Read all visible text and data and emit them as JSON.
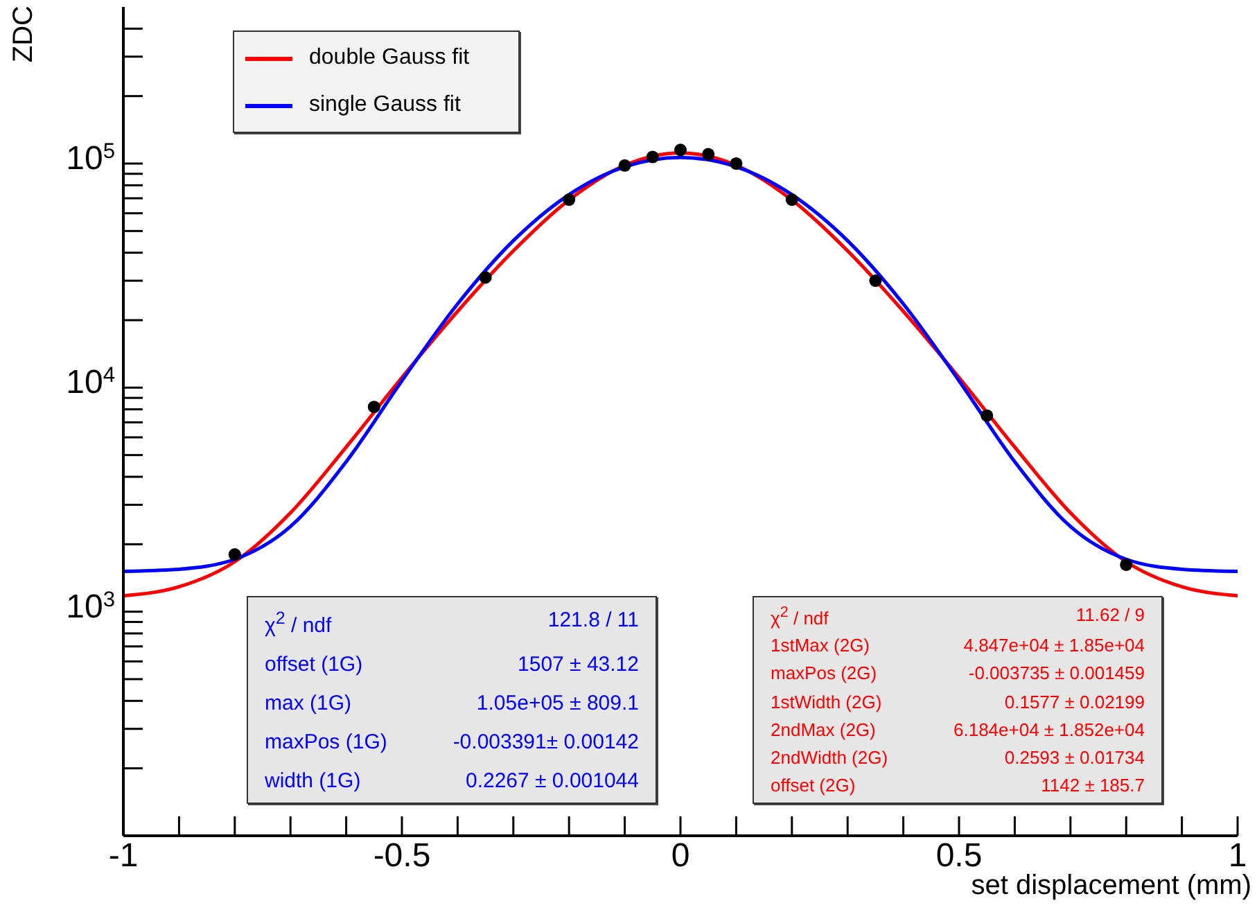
{
  "chart_data": {
    "type": "line",
    "xlabel": "set displacement (mm)",
    "ylabel": "ZDC",
    "log": "y",
    "legend": "top left",
    "grid": false,
    "xlim": [
      -1,
      1
    ],
    "xticks": [
      -1,
      {
        "value": -0.9,
        "label": null
      },
      {
        "value": -0.8,
        "label": null
      },
      {
        "value": -0.7,
        "label": null
      },
      {
        "value": -0.6,
        "label": null
      },
      -0.5,
      {
        "value": -0.4,
        "label": null
      },
      {
        "value": -0.3,
        "label": null
      },
      {
        "value": -0.2,
        "label": null
      },
      {
        "value": -0.1,
        "label": null
      },
      0,
      {
        "value": 0.1,
        "label": null
      },
      {
        "value": 0.2,
        "label": null
      },
      {
        "value": 0.3,
        "label": null
      },
      {
        "value": 0.4,
        "label": null
      },
      0.5,
      {
        "value": 0.6,
        "label": null
      },
      {
        "value": 0.7,
        "label": null
      },
      {
        "value": 0.8,
        "label": null
      },
      {
        "value": 0.9,
        "label": null
      },
      1
    ],
    "ylim": [
      100,
      500000
    ],
    "yticks": [
      {
        "value": 200,
        "label": null
      },
      {
        "value": 300,
        "label": null
      },
      {
        "value": 400,
        "label": null
      },
      {
        "value": 500,
        "label": null
      },
      {
        "value": 600,
        "label": null
      },
      {
        "value": 700,
        "label": null
      },
      {
        "value": 800,
        "label": null
      },
      {
        "value": 900,
        "label": null
      },
      {
        "value": 1000,
        "label": "10$^{3}$"
      },
      {
        "value": 2000,
        "label": null
      },
      {
        "value": 3000,
        "label": null
      },
      {
        "value": 4000,
        "label": null
      },
      {
        "value": 5000,
        "label": null
      },
      {
        "value": 6000,
        "label": null
      },
      {
        "value": 7000,
        "label": null
      },
      {
        "value": 8000,
        "label": null
      },
      {
        "value": 9000,
        "label": null
      },
      {
        "value": 10000,
        "label": "10$^{4}$"
      },
      {
        "value": 20000,
        "label": null
      },
      {
        "value": 30000,
        "label": null
      },
      {
        "value": 40000,
        "label": null
      },
      {
        "value": 50000,
        "label": null
      },
      {
        "value": 60000,
        "label": null
      },
      {
        "value": 70000,
        "label": null
      },
      {
        "value": 80000,
        "label": null
      },
      {
        "value": 90000,
        "label": null
      },
      {
        "value": 100000,
        "label": "10$^{5}$"
      },
      {
        "value": 200000,
        "label": null
      },
      {
        "value": 300000,
        "label": null
      },
      {
        "value": 400000,
        "label": null
      }
    ],
    "series": [
      {
        "name": "double Gauss fit",
        "color": "#ff0000",
        "marker": "none",
        "x": [
          -1,
          -0.9,
          -0.8,
          -0.7,
          -0.6,
          -0.5,
          -0.4,
          -0.3,
          -0.2,
          -0.1,
          0,
          0.1,
          0.2,
          0.3,
          0.4,
          0.5,
          0.6,
          0.7,
          0.8,
          0.9,
          1
        ],
        "values": [
          1178,
          1292,
          1672,
          2762,
          5429,
          11095,
          21903,
          40749,
          68760,
          98191,
          111452,
          98191,
          68760,
          40749,
          21903,
          11095,
          5429,
          2762,
          1672,
          1292,
          1178
        ]
      },
      {
        "name": "single Gauss fit",
        "color": "#0000ff",
        "marker": "none",
        "x": [
          -1,
          -0.9,
          -0.8,
          -0.7,
          -0.6,
          -0.5,
          -0.4,
          -0.3,
          -0.2,
          -0.1,
          0,
          0.1,
          0.2,
          0.3,
          0.4,
          0.5,
          0.6,
          0.7,
          0.8,
          0.9,
          1
        ],
        "values": [
          1513,
          1547,
          1714,
          2400,
          4670,
          10727,
          23641,
          45250,
          72655,
          96774,
          106507,
          96774,
          72655,
          45250,
          23641,
          10727,
          4670,
          2400,
          1714,
          1547,
          1513
        ]
      },
      {
        "type": "scatter",
        "color": "#000000",
        "marker": "circle",
        "x": [
          -0.8,
          -0.55,
          -0.35,
          -0.2,
          -0.1,
          -0.05,
          0,
          0.05,
          0.1,
          0.2,
          0.35,
          0.55,
          0.8
        ],
        "values": [
          1800,
          8200,
          31000,
          69000,
          98000,
          107000,
          115000,
          110000,
          100000,
          69000,
          30000,
          7500,
          1620
        ]
      }
    ],
    "annotations": [
      "χ$^{2}$ / ndf",
      "121.8 / 11",
      "offset (1G)",
      "1507 ± 43.12",
      "max (1G)",
      "1.05e+05 ± 809.1",
      "maxPos (1G)",
      "-0.003391± 0.00142",
      "width (1G)",
      "0.2267 ± 0.001044",
      "χ$^{2}$ / ndf",
      "11.62 / 9",
      "1stMax (2G)",
      "4.847e+04 ± 1.85e+04",
      "maxPos (2G)",
      "-0.003735 ± 0.001459",
      "1stWidth (2G)",
      "0.1577 ± 0.02199",
      "2ndMax (2G)",
      "6.184e+04 ± 1.852e+04",
      "2ndWidth (2G)",
      "0.2593 ± 0.01734",
      "offset (2G)",
      "1142 ± 185.7"
    ]
  }
}
